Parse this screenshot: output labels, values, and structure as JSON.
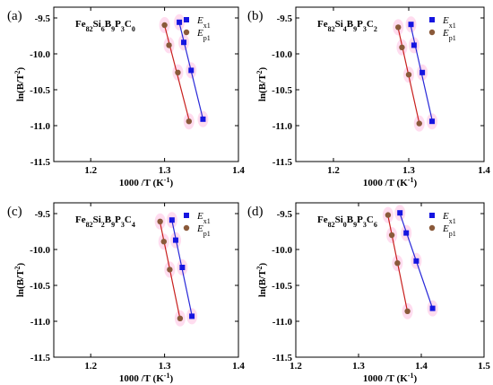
{
  "figure": {
    "colors": {
      "Ex1": "#1515e0",
      "Ep1": "#8a5a3a",
      "line_x1": "#2828d8",
      "line_p1": "#c8201e",
      "glow": "#ff9ad0"
    }
  },
  "chart_data": [
    {
      "type": "scatter",
      "panel_label": "(a)",
      "title": {
        "base": "Fe",
        "parts": [
          [
            "82",
            ""
          ],
          [
            "Si",
            ""
          ],
          [
            "6",
            ""
          ],
          [
            "B",
            ""
          ],
          [
            "9",
            ""
          ],
          [
            "P",
            ""
          ],
          [
            "3",
            ""
          ],
          [
            "C",
            ""
          ],
          [
            "0",
            ""
          ]
        ]
      },
      "title_text": "Fe82Si6B9P3C0",
      "xlabel": "1000 /T (K-1)",
      "ylabel": "ln(B/T2)",
      "xlim": [
        1.15,
        1.4
      ],
      "ylim": [
        -11.5,
        -9.35
      ],
      "xticks": [
        1.2,
        1.3,
        1.4
      ],
      "xtick_labels": [
        "1.2",
        "1.3",
        "1.4"
      ],
      "yticks": [
        -9.5,
        -10.0,
        -10.5,
        -11.0,
        -11.5
      ],
      "ytick_labels": [
        "-9.5",
        "-10.0",
        "-10.5",
        "-11.0",
        "-11.5"
      ],
      "legend_position": "top-right",
      "series": [
        {
          "name": "Ex1",
          "marker": "square",
          "x": [
            1.32,
            1.326,
            1.336,
            1.352
          ],
          "y": [
            -9.56,
            -9.84,
            -10.23,
            -10.91
          ]
        },
        {
          "name": "Ep1",
          "marker": "circle",
          "x": [
            1.3,
            1.306,
            1.318,
            1.333
          ],
          "y": [
            -9.6,
            -9.88,
            -10.26,
            -10.94
          ]
        }
      ]
    },
    {
      "type": "scatter",
      "panel_label": "(b)",
      "title_text": "Fe82Si4B9P3C2",
      "xlabel": "1000 /T (K-1)",
      "ylabel": "ln(B/T2)",
      "xlim": [
        1.15,
        1.4
      ],
      "ylim": [
        -11.5,
        -9.35
      ],
      "xticks": [
        1.2,
        1.3,
        1.4
      ],
      "xtick_labels": [
        "1.2",
        "1.3",
        "1.4"
      ],
      "yticks": [
        -9.5,
        -10.0,
        -10.5,
        -11.0,
        -11.5
      ],
      "ytick_labels": [
        "-9.5",
        "-10.0",
        "-10.5",
        "-11.0",
        "-11.5"
      ],
      "legend_position": "top-right",
      "series": [
        {
          "name": "Ex1",
          "marker": "square",
          "x": [
            1.303,
            1.307,
            1.318,
            1.331
          ],
          "y": [
            -9.59,
            -9.88,
            -10.26,
            -10.94
          ]
        },
        {
          "name": "Ep1",
          "marker": "circle",
          "x": [
            1.286,
            1.291,
            1.3,
            1.314
          ],
          "y": [
            -9.63,
            -9.91,
            -10.29,
            -10.97
          ]
        }
      ]
    },
    {
      "type": "scatter",
      "panel_label": "(c)",
      "title_text": "Fe82Si2B9P3C4",
      "xlabel": "1000 /T (K-1)",
      "ylabel": "ln(B/T2)",
      "xlim": [
        1.15,
        1.4
      ],
      "ylim": [
        -11.5,
        -9.35
      ],
      "xticks": [
        1.2,
        1.3,
        1.4
      ],
      "xtick_labels": [
        "1.2",
        "1.3",
        "1.4"
      ],
      "yticks": [
        -9.5,
        -10.0,
        -10.5,
        -11.0,
        -11.5
      ],
      "ytick_labels": [
        "-9.5",
        "-10.0",
        "-10.5",
        "-11.0",
        "-11.5"
      ],
      "legend_position": "top-right",
      "series": [
        {
          "name": "Ex1",
          "marker": "square",
          "x": [
            1.31,
            1.315,
            1.324,
            1.337
          ],
          "y": [
            -9.59,
            -9.87,
            -10.25,
            -10.93
          ]
        },
        {
          "name": "Ep1",
          "marker": "circle",
          "x": [
            1.294,
            1.299,
            1.307,
            1.321
          ],
          "y": [
            -9.61,
            -9.89,
            -10.28,
            -10.96
          ]
        }
      ]
    },
    {
      "type": "scatter",
      "panel_label": "(d)",
      "title_text": "Fe82Si0B9P3C6",
      "xlabel": "1000 /T (K-1)",
      "ylabel": "ln(B/T2)",
      "xlim": [
        1.2,
        1.5
      ],
      "ylim": [
        -11.5,
        -9.35
      ],
      "xticks": [
        1.2,
        1.3,
        1.4,
        1.5
      ],
      "xtick_labels": [
        "1.2",
        "1.3",
        "1.4",
        "1.5"
      ],
      "yticks": [
        -9.5,
        -10.0,
        -10.5,
        -11.0,
        -11.5
      ],
      "ytick_labels": [
        "-9.5",
        "-10.0",
        "-10.5",
        "-11.0",
        "-11.5"
      ],
      "legend_position": "top-right",
      "series": [
        {
          "name": "Ex1",
          "marker": "square",
          "x": [
            1.366,
            1.376,
            1.392,
            1.418
          ],
          "y": [
            -9.49,
            -9.77,
            -10.16,
            -10.82
          ]
        },
        {
          "name": "Ep1",
          "marker": "circle",
          "x": [
            1.347,
            1.353,
            1.362,
            1.378
          ],
          "y": [
            -9.52,
            -9.8,
            -10.19,
            -10.86
          ]
        }
      ]
    }
  ]
}
